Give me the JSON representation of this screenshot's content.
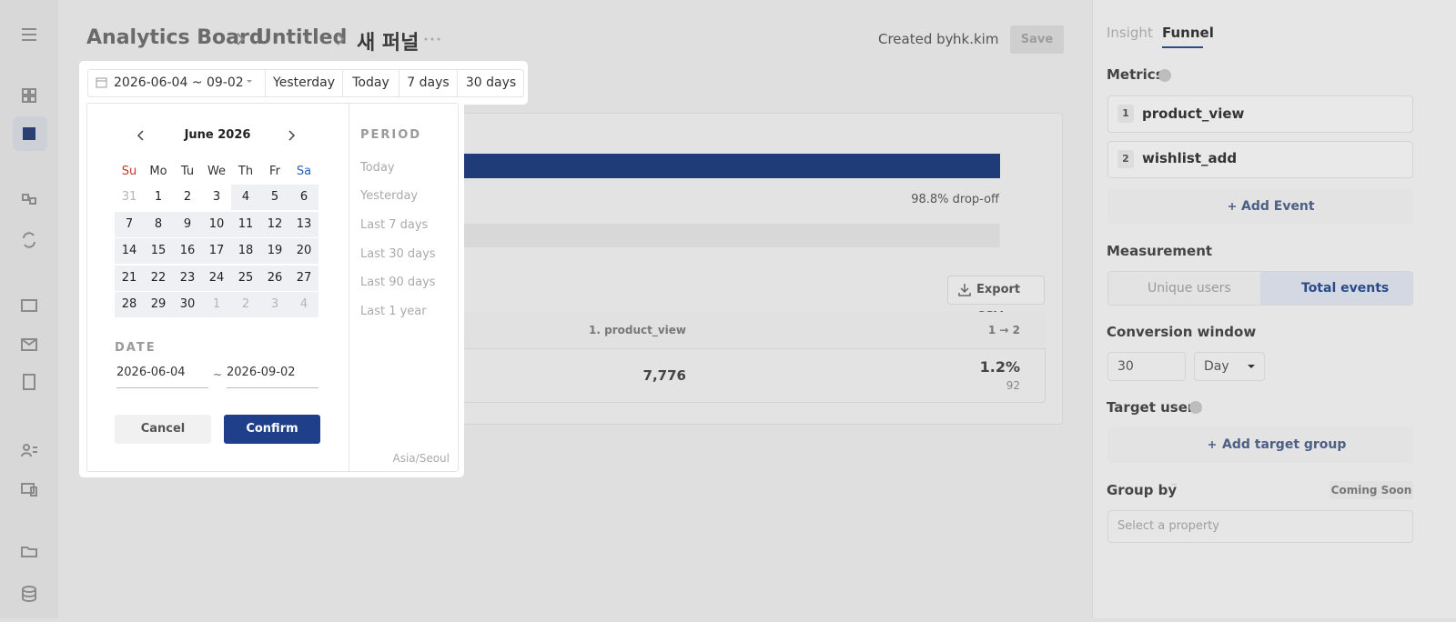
{
  "breadcrumb": [
    "Analytics Board",
    "Untitled",
    "새 퍼널"
  ],
  "header": {
    "created_by_label": "Created by:",
    "created_by": "hk.kim",
    "save": "Save"
  },
  "funnel": {
    "drop_off": "98.8% drop-off",
    "export": "Export CSV",
    "column_step": "1. product_view",
    "column_conversion": "1 → 2",
    "step_value": "7,776",
    "conversion_rate": "1.2%",
    "conversion_count": "92"
  },
  "right_panel": {
    "tabs": [
      "Insight",
      "Funnel"
    ],
    "metrics_label": "Metrics",
    "metrics": [
      {
        "index": "1",
        "name": "product_view"
      },
      {
        "index": "2",
        "name": "wishlist_add"
      }
    ],
    "add_event": "Add Event",
    "measurement_label": "Measurement",
    "measurement_options": [
      "Unique users",
      "Total events"
    ],
    "conversion_window_label": "Conversion window",
    "conversion_window_value": "30",
    "conversion_window_unit": "Day",
    "target_users_label": "Target users",
    "add_target_group": "Add target group",
    "group_by_label": "Group by",
    "coming_soon": "Coming Soon",
    "select_property": "Select a property"
  },
  "date_picker": {
    "range": "2026-06-04 ~ 09-02",
    "quick": [
      "Yesterday",
      "Today",
      "7 days",
      "30 days"
    ],
    "month": "June 2026",
    "weekdays": [
      "Su",
      "Mo",
      "Tu",
      "We",
      "Th",
      "Fr",
      "Sa"
    ],
    "weeks": [
      [
        31,
        1,
        2,
        3,
        4,
        5,
        6
      ],
      [
        7,
        8,
        9,
        10,
        11,
        12,
        13
      ],
      [
        14,
        15,
        16,
        17,
        18,
        19,
        20
      ],
      [
        21,
        22,
        23,
        24,
        25,
        26,
        27
      ],
      [
        28,
        29,
        30,
        1,
        2,
        3,
        4
      ]
    ],
    "period_label": "PERIOD",
    "periods": [
      "Today",
      "Yesterday",
      "Last 7 days",
      "Last 30 days",
      "Last 90 days",
      "Last 1 year"
    ],
    "date_label": "DATE",
    "start": "2026-06-04",
    "separator": "~",
    "end": "2026-09-02",
    "cancel": "Cancel",
    "confirm": "Confirm",
    "timezone": "Asia/Seoul"
  }
}
